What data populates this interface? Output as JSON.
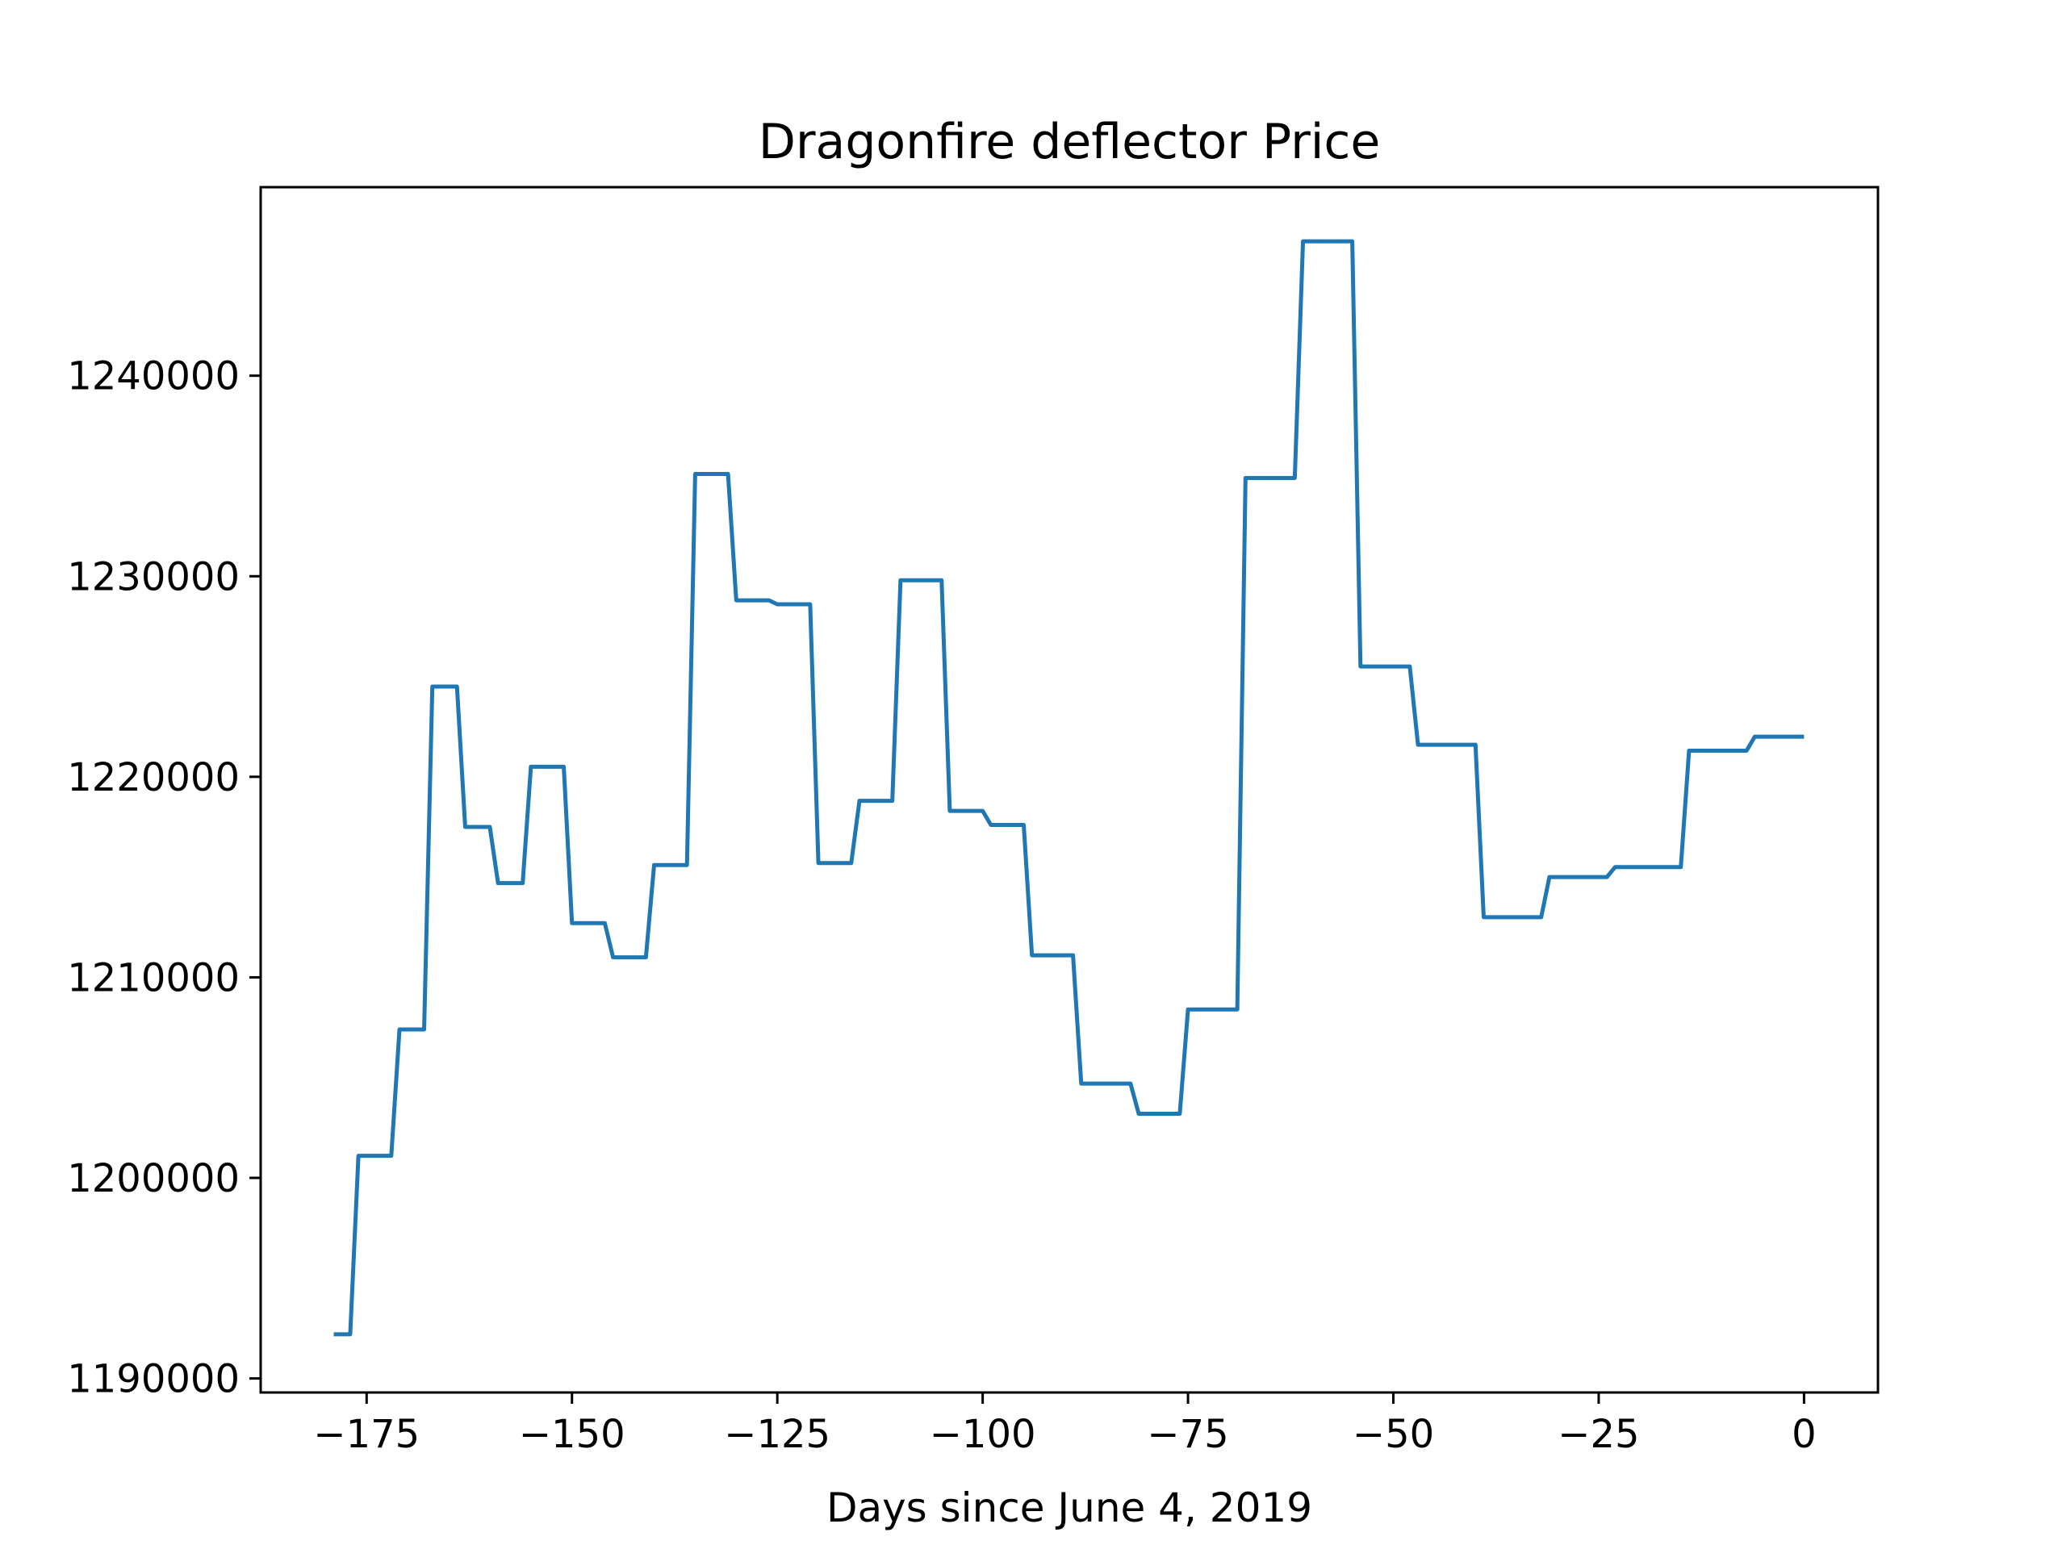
{
  "chart_data": {
    "type": "line",
    "title": "Dragonfire deflector Price",
    "xlabel": "Days since June 4, 2019",
    "ylabel": "",
    "xlim": [
      -187.9,
      9
    ],
    "ylim": [
      1189300,
      1249400
    ],
    "x_ticks": [
      -175,
      -150,
      -125,
      -100,
      -75,
      -50,
      -25,
      0
    ],
    "x_tick_labels": [
      "−175",
      "−150",
      "−125",
      "−100",
      "−75",
      "−50",
      "−25",
      "0"
    ],
    "y_ticks": [
      1190000,
      1200000,
      1210000,
      1220000,
      1230000,
      1240000
    ],
    "y_tick_labels": [
      "1190000",
      "1200000",
      "1210000",
      "1220000",
      "1230000",
      "1240000"
    ],
    "grid": false,
    "series": [
      {
        "name": "",
        "color": "#1f77b4",
        "x": [
          -179,
          -177,
          -176,
          -172,
          -171,
          -168,
          -167,
          -164,
          -163,
          -160,
          -159,
          -156,
          -155,
          -151,
          -150,
          -146,
          -145,
          -141,
          -140,
          -136,
          -135,
          -131,
          -130,
          -126,
          -125,
          -121,
          -120,
          -116,
          -115,
          -111,
          -110,
          -105,
          -104,
          -100,
          -99,
          -95,
          -94,
          -89,
          -88,
          -82,
          -81,
          -76,
          -75,
          -69,
          -68,
          -62,
          -61,
          -55,
          -54,
          -48,
          -47,
          -40,
          -39,
          -32,
          -31,
          -24,
          -23,
          -15,
          -14,
          -7,
          -6,
          0
        ],
        "y": [
          1192200,
          1192200,
          1201100,
          1201100,
          1207400,
          1207400,
          1224500,
          1224500,
          1217500,
          1217500,
          1214700,
          1214700,
          1220500,
          1220500,
          1212700,
          1212700,
          1211000,
          1211000,
          1215600,
          1215600,
          1235100,
          1235100,
          1228800,
          1228800,
          1228600,
          1228600,
          1215700,
          1215700,
          1218800,
          1218800,
          1229800,
          1229800,
          1218300,
          1218300,
          1217600,
          1217600,
          1211100,
          1211100,
          1204700,
          1204700,
          1203200,
          1203200,
          1208400,
          1208400,
          1234900,
          1234900,
          1246700,
          1246700,
          1225500,
          1225500,
          1221600,
          1221600,
          1213000,
          1213000,
          1215000,
          1215000,
          1215500,
          1215500,
          1221300,
          1221300,
          1222000,
          1222000
        ]
      }
    ]
  }
}
